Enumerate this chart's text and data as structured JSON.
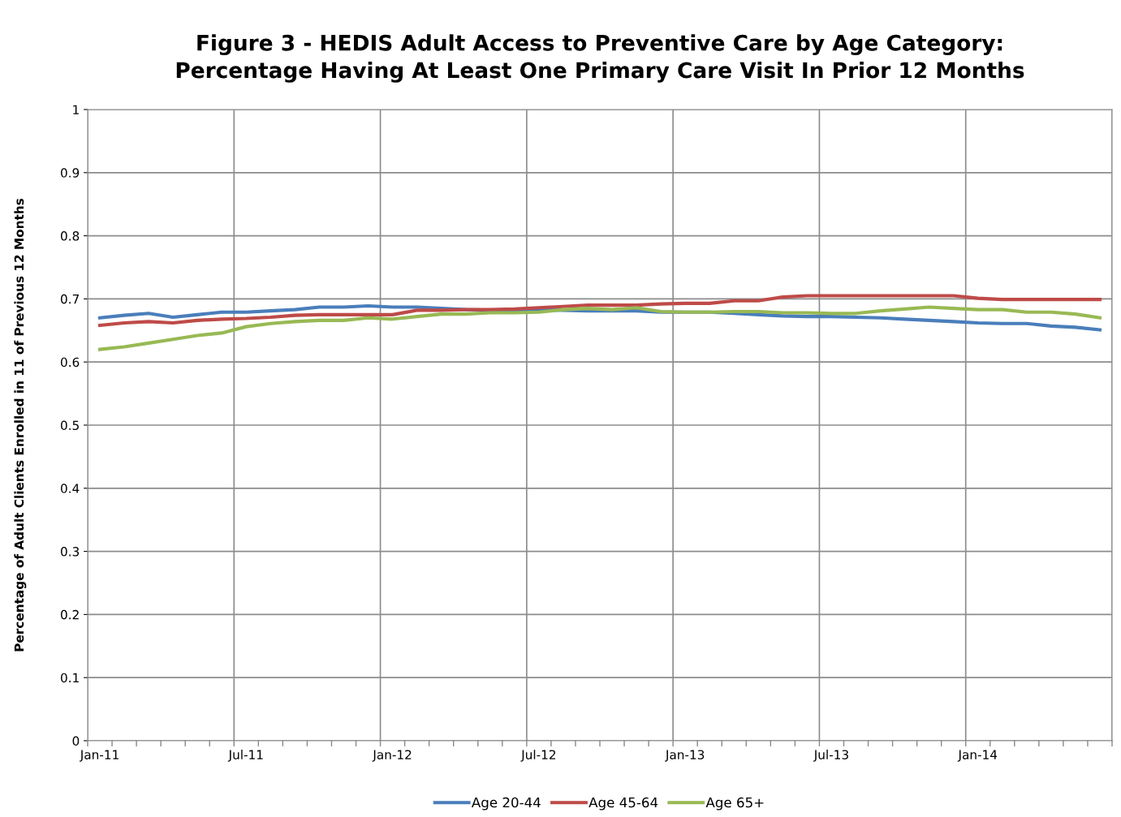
{
  "chart_data": {
    "type": "line",
    "title": "Figure 3 - HEDIS Adult Access to Preventive Care by Age Category:\nPercentage Having At Least One Primary Care Visit In Prior 12 Months",
    "ylabel": "Percentage of Adult Clients Enrolled in 11 of Previous 12 Months",
    "categories": [
      "Jan-11",
      null,
      null,
      null,
      null,
      null,
      "Jul-11",
      null,
      null,
      null,
      null,
      null,
      "Jan-12",
      null,
      null,
      null,
      null,
      null,
      "Jul-12",
      null,
      null,
      null,
      null,
      null,
      "Jan-13",
      null,
      null,
      null,
      null,
      null,
      "Jul-13",
      null,
      null,
      null,
      null,
      null,
      "Jan-14",
      null,
      null,
      null,
      null,
      null
    ],
    "series": [
      {
        "name": "Age 20-44",
        "color": "#4a7ebb",
        "values": [
          0.67,
          0.674,
          0.677,
          0.671,
          0.675,
          0.679,
          0.679,
          0.681,
          0.683,
          0.687,
          0.687,
          0.689,
          0.687,
          0.687,
          0.685,
          0.683,
          0.682,
          0.682,
          0.683,
          0.682,
          0.681,
          0.681,
          0.681,
          0.679,
          0.679,
          0.679,
          0.677,
          0.675,
          0.673,
          0.672,
          0.672,
          0.671,
          0.67,
          0.668,
          0.666,
          0.664,
          0.662,
          0.661,
          0.661,
          0.657,
          0.655,
          0.651
        ]
      },
      {
        "name": "Age 45-64",
        "color": "#be4b48",
        "values": [
          0.658,
          0.662,
          0.664,
          0.662,
          0.666,
          0.668,
          0.669,
          0.671,
          0.674,
          0.675,
          0.675,
          0.675,
          0.675,
          0.682,
          0.682,
          0.683,
          0.683,
          0.684,
          0.686,
          0.688,
          0.69,
          0.69,
          0.69,
          0.692,
          0.693,
          0.693,
          0.697,
          0.697,
          0.703,
          0.705,
          0.705,
          0.705,
          0.705,
          0.705,
          0.705,
          0.705,
          0.701,
          0.699,
          0.699,
          0.699,
          0.699,
          0.699
        ]
      },
      {
        "name": "Age 65+",
        "color": "#98b954",
        "values": [
          0.62,
          0.624,
          0.63,
          0.636,
          0.642,
          0.646,
          0.656,
          0.661,
          0.664,
          0.666,
          0.666,
          0.67,
          0.668,
          0.672,
          0.676,
          0.676,
          0.678,
          0.678,
          0.679,
          0.683,
          0.685,
          0.683,
          0.686,
          0.68,
          0.679,
          0.679,
          0.68,
          0.68,
          0.678,
          0.678,
          0.677,
          0.677,
          0.681,
          0.684,
          0.687,
          0.685,
          0.683,
          0.683,
          0.679,
          0.679,
          0.676,
          0.67
        ]
      }
    ],
    "ylim": [
      0,
      1
    ],
    "yticks": [
      0,
      0.1,
      0.2,
      0.3,
      0.4,
      0.5,
      0.6,
      0.7,
      0.8,
      0.9,
      1
    ],
    "grid": true,
    "legend": "bottom",
    "marker": "none",
    "line_style": "solid"
  }
}
